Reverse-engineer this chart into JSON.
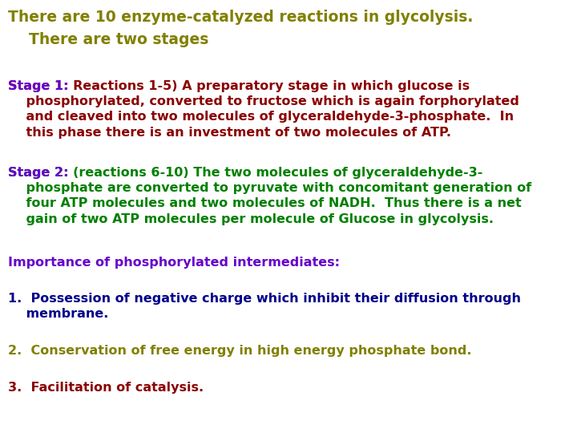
{
  "background_color": "#ffffff",
  "title_line1": "There are 10 enzyme-catalyzed reactions in glycolysis.",
  "title_line2": "    There are two stages",
  "title_color": "#808000",
  "stage1_label": "Stage 1: ",
  "stage1_label_color": "#6600cc",
  "stage1_text": "Reactions 1-5) A preparatory stage in which glucose is\n    phosphorylated, converted to fructose which is again forphorylated\n    and cleaved into two molecules of glyceraldehyde-3-phosphate.  In\n    this phase there is an investment of two molecules of ATP.",
  "stage1_text_color": "#8b0000",
  "stage2_label": "Stage 2: ",
  "stage2_label_color": "#6600cc",
  "stage2_text": "(reactions 6-10) The two molecules of glyceraldehyde-3-\n    phosphate are converted to pyruvate with concomitant generation of\n    four ATP molecules and two molecules of NADH.  Thus there is a net\n    gain of two ATP molecules per molecule of Glucose in glycolysis.",
  "stage2_text_color": "#008000",
  "importance_text": "Importance of phosphorylated intermediates:",
  "importance_color": "#6600cc",
  "item1_num": "1.  ",
  "item1_text": "Possession of negative charge which inhibit their diffusion through\n    membrane.",
  "item1_color": "#00008b",
  "item2_num": "2.  ",
  "item2_text": "Conservation of free energy in high energy phosphate bond.",
  "item2_color": "#808000",
  "item3_num": "3.  ",
  "item3_text": "Facilitation of catalysis.",
  "item3_color": "#8b0000",
  "font_size_title": 13.5,
  "font_size_body": 11.5
}
